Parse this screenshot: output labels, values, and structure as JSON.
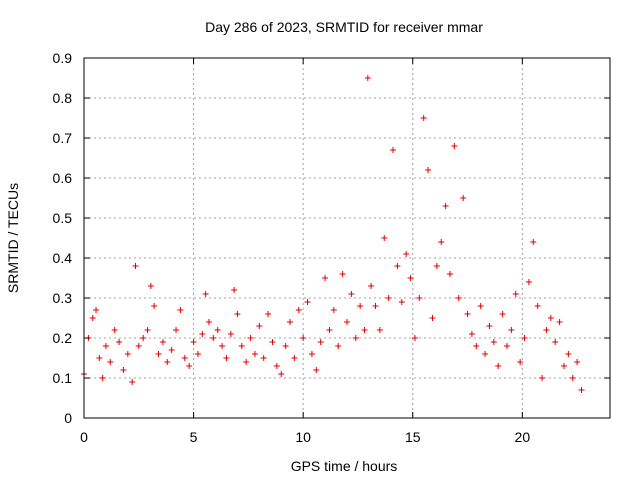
{
  "chart_data": {
    "type": "scatter",
    "title": "Day 286 of 2023, SRMTID for receiver mmar",
    "xlabel": "GPS time / hours",
    "ylabel": "SRMTID / TECUs",
    "xlim": [
      0,
      24
    ],
    "ylim": [
      0,
      0.9
    ],
    "xticks": [
      0,
      5,
      10,
      15,
      20
    ],
    "xtick_labels": [
      "0",
      "5",
      "10",
      "15",
      "20"
    ],
    "yticks": [
      0,
      0.1,
      0.2,
      0.3,
      0.4,
      0.5,
      0.6,
      0.7,
      0.8,
      0.9
    ],
    "ytick_labels": [
      "0",
      "0.1",
      "0.2",
      "0.3",
      "0.4",
      "0.5",
      "0.6",
      "0.7",
      "0.8",
      "0.9"
    ],
    "grid": true,
    "marker": "+",
    "series": [
      {
        "name": "SRMTID",
        "color": "#e00000",
        "x": [
          0.0,
          0.2,
          0.4,
          0.55,
          0.7,
          0.85,
          1.0,
          1.2,
          1.4,
          1.6,
          1.8,
          2.0,
          2.2,
          2.35,
          2.5,
          2.7,
          2.9,
          3.05,
          3.2,
          3.4,
          3.6,
          3.8,
          4.0,
          4.2,
          4.4,
          4.6,
          4.8,
          5.0,
          5.2,
          5.4,
          5.55,
          5.7,
          5.9,
          6.1,
          6.3,
          6.5,
          6.7,
          6.85,
          7.0,
          7.2,
          7.4,
          7.6,
          7.8,
          8.0,
          8.2,
          8.4,
          8.6,
          8.8,
          9.0,
          9.2,
          9.4,
          9.6,
          9.8,
          10.0,
          10.2,
          10.4,
          10.6,
          10.8,
          11.0,
          11.2,
          11.4,
          11.6,
          11.8,
          12.0,
          12.2,
          12.4,
          12.6,
          12.8,
          12.95,
          13.1,
          13.3,
          13.5,
          13.7,
          13.9,
          14.1,
          14.3,
          14.5,
          14.7,
          14.9,
          15.1,
          15.3,
          15.5,
          15.7,
          15.9,
          16.1,
          16.3,
          16.5,
          16.7,
          16.9,
          17.1,
          17.3,
          17.5,
          17.7,
          17.9,
          18.1,
          18.3,
          18.5,
          18.7,
          18.9,
          19.1,
          19.3,
          19.5,
          19.7,
          19.9,
          20.1,
          20.3,
          20.5,
          20.7,
          20.9,
          21.1,
          21.3,
          21.5,
          21.7,
          21.9,
          22.1,
          22.3,
          22.5,
          22.7
        ],
        "values": [
          0.11,
          0.2,
          0.25,
          0.27,
          0.15,
          0.1,
          0.18,
          0.14,
          0.22,
          0.19,
          0.12,
          0.16,
          0.09,
          0.38,
          0.18,
          0.2,
          0.22,
          0.33,
          0.28,
          0.16,
          0.19,
          0.14,
          0.17,
          0.22,
          0.27,
          0.15,
          0.13,
          0.19,
          0.16,
          0.21,
          0.31,
          0.24,
          0.2,
          0.22,
          0.18,
          0.15,
          0.21,
          0.32,
          0.26,
          0.18,
          0.14,
          0.2,
          0.16,
          0.23,
          0.15,
          0.26,
          0.19,
          0.13,
          0.11,
          0.18,
          0.24,
          0.15,
          0.27,
          0.2,
          0.29,
          0.16,
          0.12,
          0.19,
          0.35,
          0.22,
          0.27,
          0.18,
          0.36,
          0.24,
          0.31,
          0.2,
          0.28,
          0.22,
          0.85,
          0.33,
          0.28,
          0.22,
          0.45,
          0.3,
          0.67,
          0.38,
          0.29,
          0.41,
          0.35,
          0.2,
          0.3,
          0.75,
          0.62,
          0.25,
          0.38,
          0.44,
          0.53,
          0.36,
          0.68,
          0.3,
          0.55,
          0.26,
          0.21,
          0.18,
          0.28,
          0.16,
          0.23,
          0.19,
          0.13,
          0.26,
          0.18,
          0.22,
          0.31,
          0.14,
          0.2,
          0.34,
          0.44,
          0.28,
          0.1,
          0.22,
          0.25,
          0.19,
          0.24,
          0.13,
          0.16,
          0.1,
          0.14,
          0.07
        ]
      }
    ]
  }
}
